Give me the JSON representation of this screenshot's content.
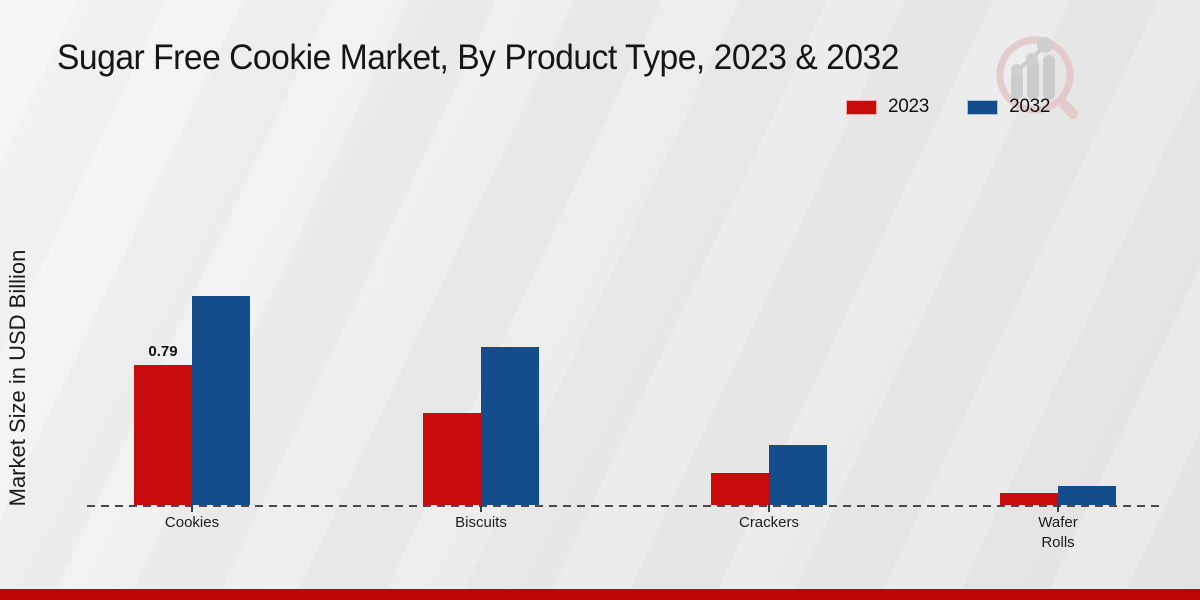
{
  "page": {
    "title": "Sugar Free Cookie Market, By Product Type, 2023 & 2032",
    "y_axis_label": "Market Size in USD Billion",
    "footer_accent_color": "#bf0505",
    "background_color": "#ebebeb"
  },
  "legend": [
    {
      "label": "2023",
      "color": "#c80c0c"
    },
    {
      "label": "2032",
      "color": "#144d8c"
    }
  ],
  "icons": {
    "watermark": "analytics-magnifier-logo"
  },
  "chart_data": {
    "type": "bar",
    "title": "Sugar Free Cookie Market, By Product Type, 2023 & 2032",
    "xlabel": "",
    "ylabel": "Market Size in USD Billion",
    "categories": [
      "Cookies",
      "Biscuits",
      "Crackers",
      "Wafer Rolls"
    ],
    "series": [
      {
        "name": "2023",
        "color": "#c80c0c",
        "values": [
          0.79,
          0.52,
          0.18,
          0.07
        ]
      },
      {
        "name": "2032",
        "color": "#144d8c",
        "values": [
          1.18,
          0.89,
          0.34,
          0.11
        ]
      }
    ],
    "annotations": [
      {
        "category": "Cookies",
        "series": "2023",
        "text": "0.79"
      }
    ],
    "ylim": [
      0,
      1.3
    ],
    "grid": false,
    "zero_line_style": "dashed",
    "legend_position": "top-right"
  }
}
